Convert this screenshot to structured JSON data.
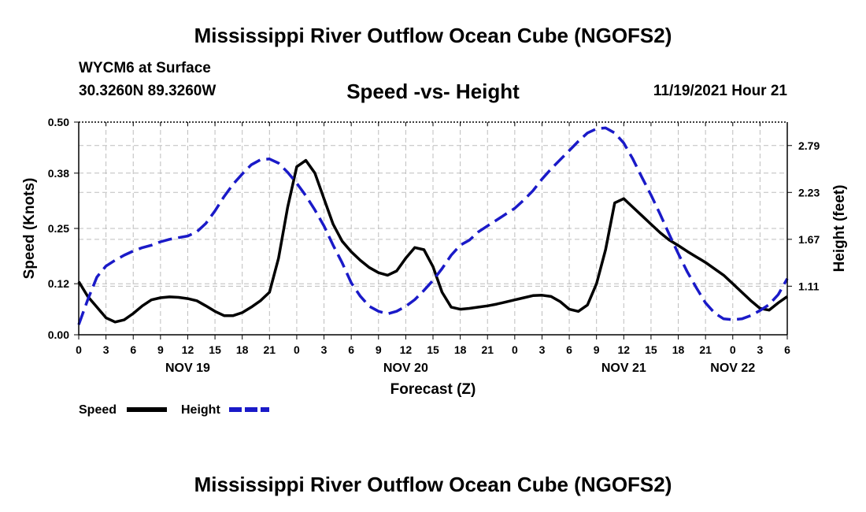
{
  "header": {
    "title": "Mississippi River Outflow Ocean Cube (NGOFS2)",
    "station": "WYCM6 at Surface",
    "coordinates": "30.3260N  89.3260W",
    "subtitle": "Speed -vs- Height",
    "datetime": "11/19/2021 Hour 21"
  },
  "footer": {
    "title": "Mississippi River Outflow Ocean Cube (NGOFS2)"
  },
  "chart_data": {
    "type": "line",
    "xlabel": "Forecast (Z)",
    "ylabel": "Speed (Knots)",
    "y2label": "Height (feet)",
    "x_unit": "hours since NOV 19 00Z",
    "xlim": [
      0,
      78
    ],
    "ylim": [
      0,
      0.5
    ],
    "y2lim": [
      0.53,
      3.07
    ],
    "x_tick_values": [
      0,
      3,
      6,
      9,
      12,
      15,
      18,
      21,
      24,
      27,
      30,
      33,
      36,
      39,
      42,
      45,
      48,
      51,
      54,
      57,
      60,
      63,
      66,
      69,
      72,
      75,
      78
    ],
    "x_tick_labels": [
      "0",
      "3",
      "6",
      "9",
      "12",
      "15",
      "18",
      "21",
      "0",
      "3",
      "6",
      "9",
      "12",
      "15",
      "18",
      "21",
      "0",
      "3",
      "6",
      "9",
      "12",
      "15",
      "18",
      "21",
      "0",
      "3",
      "6"
    ],
    "day_labels": [
      {
        "label": "NOV 19",
        "x": 12
      },
      {
        "label": "NOV 20",
        "x": 36
      },
      {
        "label": "NOV 21",
        "x": 60
      },
      {
        "label": "NOV 22",
        "x": 72
      }
    ],
    "y_ticks": [
      0.0,
      0.12,
      0.25,
      0.38,
      0.5
    ],
    "y_tick_labels": [
      "0.00",
      "0.12",
      "0.25",
      "0.38",
      "0.50"
    ],
    "y2_ticks": [
      1.11,
      1.67,
      2.23,
      2.79
    ],
    "y2_tick_labels": [
      "1.11",
      "1.67",
      "2.23",
      "2.79"
    ],
    "grid": true,
    "legend_position": "bottom-left",
    "series": [
      {
        "name": "Speed",
        "axis": "left",
        "color": "#000000",
        "style": "solid",
        "x": [
          0,
          1,
          2,
          3,
          4,
          5,
          6,
          7,
          8,
          9,
          10,
          11,
          12,
          13,
          14,
          15,
          16,
          17,
          18,
          19,
          20,
          21,
          22,
          23,
          24,
          25,
          26,
          27,
          28,
          29,
          30,
          31,
          32,
          33,
          34,
          35,
          36,
          37,
          38,
          39,
          40,
          41,
          42,
          43,
          44,
          45,
          46,
          47,
          48,
          49,
          50,
          51,
          52,
          53,
          54,
          55,
          56,
          57,
          58,
          59,
          60,
          61,
          62,
          63,
          64,
          65,
          66,
          67,
          68,
          69,
          70,
          71,
          72,
          73,
          74,
          75,
          76,
          77,
          78
        ],
        "values": [
          0.125,
          0.09,
          0.065,
          0.04,
          0.03,
          0.035,
          0.05,
          0.068,
          0.082,
          0.087,
          0.089,
          0.088,
          0.085,
          0.08,
          0.068,
          0.055,
          0.045,
          0.045,
          0.052,
          0.065,
          0.08,
          0.1,
          0.18,
          0.3,
          0.395,
          0.41,
          0.38,
          0.32,
          0.26,
          0.22,
          0.195,
          0.175,
          0.158,
          0.146,
          0.14,
          0.15,
          0.18,
          0.205,
          0.2,
          0.16,
          0.1,
          0.065,
          0.06,
          0.062,
          0.065,
          0.068,
          0.072,
          0.077,
          0.082,
          0.087,
          0.092,
          0.093,
          0.09,
          0.078,
          0.06,
          0.055,
          0.07,
          0.12,
          0.2,
          0.31,
          0.32,
          0.3,
          0.28,
          0.26,
          0.24,
          0.223,
          0.21,
          0.196,
          0.183,
          0.17,
          0.155,
          0.14,
          0.12,
          0.1,
          0.08,
          0.062,
          0.058,
          0.075,
          0.09
        ]
      },
      {
        "name": "Height",
        "axis": "right",
        "color": "#1a1ac8",
        "style": "dashed",
        "x": [
          0,
          1,
          2,
          3,
          4,
          5,
          6,
          7,
          8,
          9,
          10,
          11,
          12,
          13,
          14,
          15,
          16,
          17,
          18,
          19,
          20,
          21,
          22,
          23,
          24,
          25,
          26,
          27,
          28,
          29,
          30,
          31,
          32,
          33,
          34,
          35,
          36,
          37,
          38,
          39,
          40,
          41,
          42,
          43,
          44,
          45,
          46,
          47,
          48,
          49,
          50,
          51,
          52,
          53,
          54,
          55,
          56,
          57,
          58,
          59,
          60,
          61,
          62,
          63,
          64,
          65,
          66,
          67,
          68,
          69,
          70,
          71,
          72,
          73,
          74,
          75,
          76,
          77,
          78
        ],
        "values": [
          0.65,
          0.95,
          1.22,
          1.35,
          1.42,
          1.48,
          1.53,
          1.57,
          1.6,
          1.64,
          1.67,
          1.69,
          1.71,
          1.76,
          1.86,
          2.01,
          2.18,
          2.33,
          2.45,
          2.56,
          2.62,
          2.63,
          2.58,
          2.47,
          2.34,
          2.19,
          2.02,
          1.83,
          1.6,
          1.39,
          1.15,
          0.99,
          0.87,
          0.81,
          0.78,
          0.81,
          0.87,
          0.95,
          1.06,
          1.18,
          1.32,
          1.48,
          1.6,
          1.66,
          1.76,
          1.83,
          1.9,
          1.97,
          2.04,
          2.14,
          2.25,
          2.39,
          2.51,
          2.62,
          2.73,
          2.84,
          2.94,
          2.99,
          3.0,
          2.94,
          2.82,
          2.63,
          2.41,
          2.2,
          1.97,
          1.73,
          1.5,
          1.28,
          1.09,
          0.91,
          0.79,
          0.72,
          0.71,
          0.72,
          0.76,
          0.82,
          0.89,
          1.01,
          1.2
        ]
      }
    ]
  }
}
